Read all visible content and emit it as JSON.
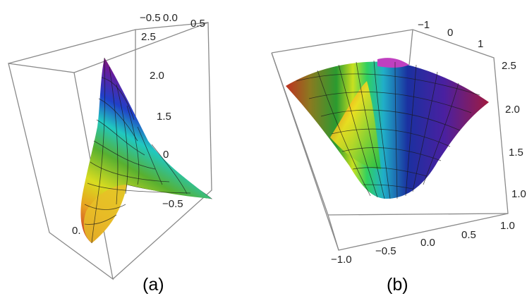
{
  "panels": [
    {
      "caption": "(a)",
      "top_ticks": [
        "−0.5",
        "0.0",
        "0.5"
      ],
      "right_ticks": [
        "2.5",
        "2.0",
        "1.5"
      ],
      "inner_ticks": [
        "0",
        "−0.5"
      ],
      "left_ticks": [
        "0."
      ]
    },
    {
      "caption": "(b)",
      "top_ticks": [
        "−1",
        "0",
        "1"
      ],
      "right_ticks": [
        "2.5",
        "2.0",
        "1.5",
        "1.0"
      ],
      "bottom_ticks": [
        "−1.0",
        "−0.5",
        "0.0",
        "0.5",
        "1.0"
      ]
    }
  ]
}
